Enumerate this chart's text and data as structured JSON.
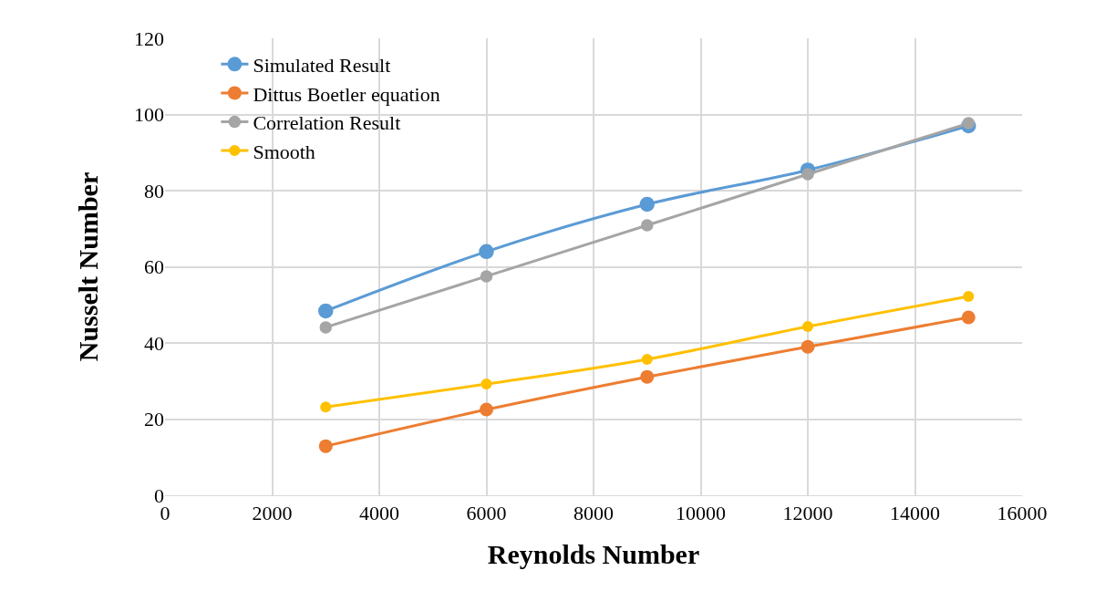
{
  "chart_data": {
    "type": "line",
    "xlabel": "Reynolds Number",
    "ylabel": "Nusselt Number",
    "x": [
      3000,
      6000,
      9000,
      12000,
      15000
    ],
    "series": [
      {
        "name": "Simulated Result",
        "color": "#5b9bd5",
        "values": [
          48.4,
          64,
          76.4,
          85.4,
          97
        ]
      },
      {
        "name": "Dittus Boetler equation",
        "color": "#ed7d31",
        "values": [
          12.9,
          22.5,
          31.1,
          39,
          46.7
        ]
      },
      {
        "name": "Correlation Result",
        "color": "#a5a5a5",
        "values": [
          44.1,
          57.5,
          70.9,
          84.3,
          97.7
        ]
      },
      {
        "name": "Smooth",
        "color": "#ffc000",
        "values": [
          23.2,
          29.2,
          35.7,
          44.3,
          52.2
        ]
      }
    ],
    "xlim": [
      0,
      16000
    ],
    "xticks": [
      0,
      2000,
      4000,
      6000,
      8000,
      10000,
      12000,
      14000,
      16000
    ],
    "ylim": [
      0,
      120
    ],
    "yticks": [
      0,
      20,
      40,
      60,
      80,
      100,
      120
    ],
    "grid": true,
    "legend": "top left",
    "marker": "circle",
    "line_style": "solid"
  }
}
